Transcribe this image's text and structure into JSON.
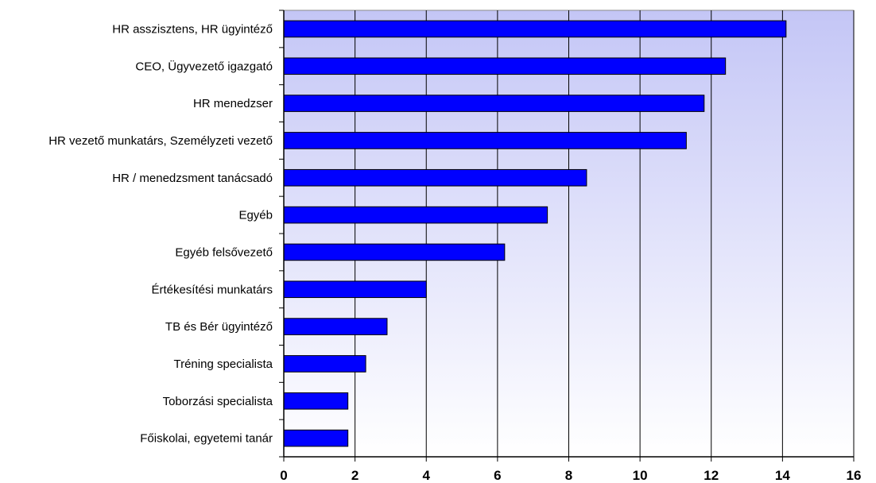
{
  "chart_data": {
    "type": "bar",
    "orientation": "horizontal",
    "title": "",
    "xlabel": "",
    "ylabel": "",
    "categories": [
      "HR asszisztens, HR ügyintéző",
      "CEO, Ügyvezető igazgató",
      "HR menedzser",
      "HR vezető munkatárs, Személyzeti vezető",
      "HR / menedzsment tanácsadó",
      "Egyéb",
      "Egyéb felsővezető",
      "Értékesítési munkatárs",
      "TB és Bér ügyintéző",
      "Tréning specialista",
      "Toborzási specialista",
      "Főiskolai, egyetemi tanár"
    ],
    "values": [
      14.1,
      12.4,
      11.8,
      11.3,
      8.5,
      7.4,
      6.2,
      4.0,
      2.9,
      2.3,
      1.8,
      1.8
    ],
    "xlim": [
      0,
      16
    ],
    "xticks": [
      0,
      2,
      4,
      6,
      8,
      10,
      12,
      14,
      16
    ],
    "grid": true,
    "bar_color": "#0000ff",
    "background_gradient": [
      "#c4c6f6",
      "#ffffff"
    ]
  }
}
